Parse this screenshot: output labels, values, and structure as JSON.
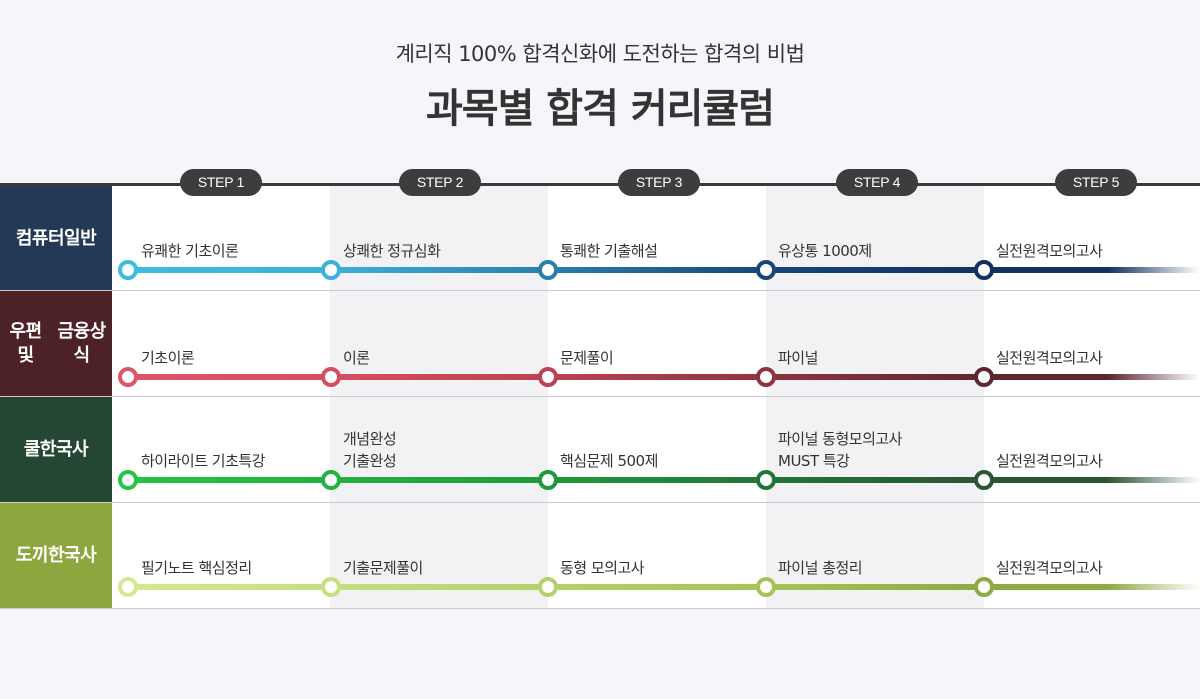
{
  "header": {
    "subtitle": "계리직 100% 합격신화에 도전하는 합격의 비법",
    "title": "과목별 합격 커리큘럼"
  },
  "steps": [
    "STEP 1",
    "STEP 2",
    "STEP 3",
    "STEP 4",
    "STEP 5"
  ],
  "rows": [
    {
      "label": "컴퓨터\n일반",
      "label_color": "#233955",
      "node_colors": [
        "#3bbde1",
        "#3bb0d9",
        "#2a7fab",
        "#17467a",
        "#12315f"
      ],
      "items": [
        "유쾌한 기초이론",
        "상쾌한 정규심화",
        "통쾌한 기출해설",
        "유상통 1000제",
        "실전원격모의고사"
      ]
    },
    {
      "label": "우편 및\n금융상식",
      "label_color": "#4d2226",
      "node_colors": [
        "#e0546a",
        "#d44e62",
        "#b94352",
        "#8e3440",
        "#5e2730"
      ],
      "items": [
        "기초이론",
        "이론",
        "문제풀이",
        "파이널",
        "실전원격모의고사"
      ]
    },
    {
      "label": "쿨한국사",
      "label_color": "#254632",
      "node_colors": [
        "#23c543",
        "#22b23f",
        "#1e9a3a",
        "#227538",
        "#2b5535"
      ],
      "items": [
        "하이라이트 기초특강",
        "개념완성\n기출완성",
        "핵심문제 500제",
        "파이널 동형모의고사\nMUST 특강",
        "실전원격모의고사"
      ]
    },
    {
      "label": "도끼한국사",
      "label_color": "#8ba73d",
      "node_colors": [
        "#d3e88f",
        "#c6df7f",
        "#b5d169",
        "#a4c556",
        "#8faa42"
      ],
      "items": [
        "필기노트 핵심정리",
        "기출문제풀이",
        "동형 모의고사",
        "파이널 총정리",
        "실전원격모의고사"
      ]
    }
  ]
}
